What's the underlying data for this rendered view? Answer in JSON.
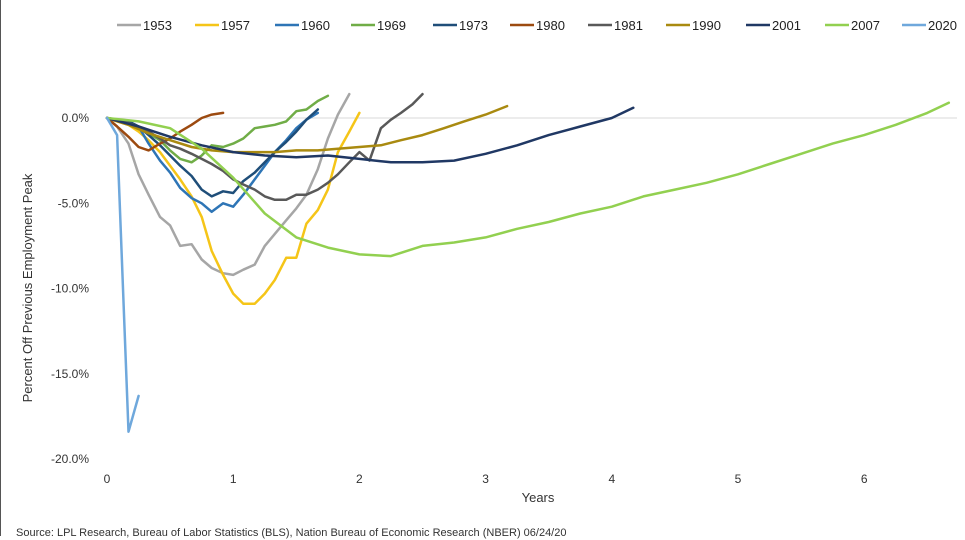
{
  "chart_data": {
    "type": "line",
    "title": "",
    "xlabel": "Years",
    "ylabel": "Percent Off Previous Employment Peak",
    "xlim": [
      0,
      6.85
    ],
    "ylim": [
      -20,
      1.0
    ],
    "x_ticks": [
      "0",
      "1",
      "2",
      "3",
      "4",
      "5",
      "6"
    ],
    "y_ticks": [
      "0.0%",
      "-5.0%",
      "-10.0%",
      "-15.0%",
      "-20.0%"
    ],
    "y_tick_values": [
      0,
      -5,
      -10,
      -15,
      -20
    ],
    "x_tick_values": [
      0,
      1,
      2,
      3,
      4,
      5,
      6
    ],
    "legend_position": "top",
    "zero_line": true,
    "series": [
      {
        "name": "1953",
        "color": "#a6a6a6",
        "x": [
          0,
          0.08,
          0.17,
          0.25,
          0.33,
          0.42,
          0.5,
          0.58,
          0.67,
          0.75,
          0.83,
          0.92,
          1.0,
          1.08,
          1.17,
          1.25,
          1.33,
          1.42,
          1.5,
          1.58,
          1.67,
          1.75,
          1.83,
          1.92
        ],
        "y": [
          0,
          -0.5,
          -1.5,
          -3.3,
          -4.5,
          -5.8,
          -6.3,
          -7.5,
          -7.4,
          -8.3,
          -8.8,
          -9.1,
          -9.2,
          -8.9,
          -8.6,
          -7.5,
          -6.8,
          -6.0,
          -5.3,
          -4.5,
          -3.0,
          -1.2,
          0.2,
          1.4
        ]
      },
      {
        "name": "1957",
        "color": "#f5c518",
        "x": [
          0,
          0.08,
          0.17,
          0.25,
          0.33,
          0.42,
          0.5,
          0.58,
          0.67,
          0.75,
          0.83,
          0.92,
          1.0,
          1.08,
          1.17,
          1.25,
          1.33,
          1.42,
          1.5,
          1.58,
          1.67,
          1.75,
          1.83,
          1.92,
          2.0
        ],
        "y": [
          0,
          -0.2,
          -0.4,
          -0.8,
          -1.3,
          -2.0,
          -2.8,
          -3.6,
          -4.6,
          -5.8,
          -7.8,
          -9.2,
          -10.3,
          -10.9,
          -10.9,
          -10.3,
          -9.5,
          -8.2,
          -8.2,
          -6.2,
          -5.4,
          -4.2,
          -2.0,
          -0.8,
          0.3
        ]
      },
      {
        "name": "1960",
        "color": "#2e75b6",
        "x": [
          0,
          0.08,
          0.17,
          0.25,
          0.33,
          0.42,
          0.5,
          0.58,
          0.67,
          0.75,
          0.83,
          0.92,
          1.0,
          1.08,
          1.17,
          1.25,
          1.33,
          1.42,
          1.5,
          1.58,
          1.67
        ],
        "y": [
          0,
          -0.1,
          -0.2,
          -0.5,
          -1.5,
          -2.5,
          -3.2,
          -4.1,
          -4.7,
          -5.0,
          -5.5,
          -5.0,
          -5.2,
          -4.5,
          -3.6,
          -2.8,
          -2.0,
          -1.3,
          -0.6,
          -0.1,
          0.3
        ]
      },
      {
        "name": "1969",
        "color": "#70ad47",
        "x": [
          0,
          0.08,
          0.17,
          0.25,
          0.33,
          0.42,
          0.5,
          0.58,
          0.67,
          0.75,
          0.83,
          0.92,
          1.0,
          1.08,
          1.17,
          1.25,
          1.33,
          1.42,
          1.5,
          1.58,
          1.67,
          1.75
        ],
        "y": [
          0,
          -0.1,
          -0.3,
          -0.6,
          -0.9,
          -1.3,
          -1.9,
          -2.4,
          -2.6,
          -2.2,
          -1.6,
          -1.7,
          -1.5,
          -1.2,
          -0.6,
          -0.5,
          -0.4,
          -0.2,
          0.4,
          0.5,
          1.0,
          1.3
        ]
      },
      {
        "name": "1973",
        "color": "#1f4e79",
        "x": [
          0,
          0.08,
          0.17,
          0.25,
          0.33,
          0.42,
          0.5,
          0.58,
          0.67,
          0.75,
          0.83,
          0.92,
          1.0,
          1.08,
          1.17,
          1.25,
          1.33,
          1.42,
          1.5,
          1.58,
          1.67
        ],
        "y": [
          0,
          -0.1,
          -0.2,
          -0.5,
          -1.0,
          -1.6,
          -2.2,
          -2.8,
          -3.4,
          -4.2,
          -4.6,
          -4.3,
          -4.4,
          -3.7,
          -3.2,
          -2.6,
          -2.0,
          -1.4,
          -0.8,
          -0.1,
          0.5
        ]
      },
      {
        "name": "1980",
        "color": "#9c4a10",
        "x": [
          0,
          0.08,
          0.17,
          0.25,
          0.33,
          0.42,
          0.5,
          0.58,
          0.67,
          0.75,
          0.83,
          0.92
        ],
        "y": [
          0,
          -0.5,
          -1.1,
          -1.7,
          -1.9,
          -1.5,
          -1.2,
          -0.8,
          -0.4,
          0.0,
          0.2,
          0.3
        ]
      },
      {
        "name": "1981",
        "color": "#595959",
        "x": [
          0,
          0.08,
          0.17,
          0.25,
          0.33,
          0.42,
          0.5,
          0.58,
          0.67,
          0.75,
          0.83,
          0.92,
          1.0,
          1.08,
          1.17,
          1.25,
          1.33,
          1.42,
          1.5,
          1.58,
          1.67,
          1.75,
          1.83,
          1.92,
          2.0,
          2.08,
          2.17,
          2.25,
          2.33,
          2.42,
          2.5
        ],
        "y": [
          0,
          -0.1,
          -0.3,
          -0.5,
          -0.8,
          -1.2,
          -1.6,
          -1.8,
          -2.1,
          -2.4,
          -2.7,
          -3.1,
          -3.6,
          -3.9,
          -4.2,
          -4.6,
          -4.8,
          -4.8,
          -4.5,
          -4.5,
          -4.2,
          -3.8,
          -3.3,
          -2.6,
          -2.0,
          -2.5,
          -0.6,
          -0.1,
          0.3,
          0.8,
          1.4
        ]
      },
      {
        "name": "1990",
        "color": "#a98a10",
        "x": [
          0,
          0.17,
          0.33,
          0.5,
          0.67,
          0.83,
          1.0,
          1.17,
          1.33,
          1.5,
          1.67,
          1.83,
          2.0,
          2.17,
          2.33,
          2.5,
          2.67,
          2.83,
          3.0,
          3.17
        ],
        "y": [
          0,
          -0.4,
          -0.9,
          -1.3,
          -1.7,
          -1.9,
          -2.0,
          -2.0,
          -2.0,
          -1.9,
          -1.9,
          -1.8,
          -1.7,
          -1.6,
          -1.3,
          -1.0,
          -0.6,
          -0.2,
          0.2,
          0.7
        ]
      },
      {
        "name": "2001",
        "color": "#203864",
        "x": [
          0,
          0.25,
          0.5,
          0.75,
          1.0,
          1.25,
          1.5,
          1.75,
          2.0,
          2.25,
          2.5,
          2.75,
          3.0,
          3.25,
          3.5,
          3.75,
          4.0,
          4.17
        ],
        "y": [
          0,
          -0.5,
          -1.1,
          -1.6,
          -2.0,
          -2.2,
          -2.3,
          -2.2,
          -2.4,
          -2.6,
          -2.6,
          -2.5,
          -2.1,
          -1.6,
          -1.0,
          -0.5,
          0.0,
          0.6
        ]
      },
      {
        "name": "2007",
        "color": "#92d050",
        "x": [
          0,
          0.25,
          0.5,
          0.75,
          1.0,
          1.25,
          1.5,
          1.75,
          2.0,
          2.25,
          2.5,
          2.75,
          3.0,
          3.25,
          3.5,
          3.75,
          4.0,
          4.25,
          4.5,
          4.75,
          5.0,
          5.25,
          5.5,
          5.75,
          6.0,
          6.25,
          6.5,
          6.67
        ],
        "y": [
          0,
          -0.2,
          -0.6,
          -1.8,
          -3.5,
          -5.6,
          -7.0,
          -7.6,
          -8.0,
          -8.1,
          -7.5,
          -7.3,
          -7.0,
          -6.5,
          -6.1,
          -5.6,
          -5.2,
          -4.6,
          -4.2,
          -3.8,
          -3.3,
          -2.7,
          -2.1,
          -1.5,
          -1.0,
          -0.4,
          0.3,
          0.9
        ]
      },
      {
        "name": "2020",
        "color": "#6fa8dc",
        "x": [
          0,
          0.08,
          0.17,
          0.25
        ],
        "y": [
          0,
          -1.0,
          -18.4,
          -16.3
        ]
      }
    ]
  },
  "source_note": "Source: LPL Research, Bureau of Labor Statistics (BLS), Nation Bureau of Economic Research (NBER) 06/24/20"
}
